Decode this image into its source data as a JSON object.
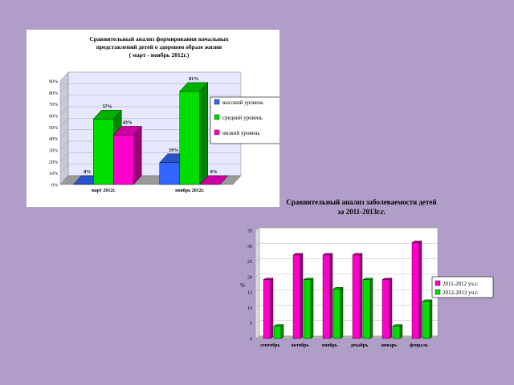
{
  "chart_data": [
    {
      "type": "bar",
      "title": "Сравнительный анализ формирования начальных представлений детей о здоровом образе жизни ( март - ноябрь 2012г.)",
      "title_lines": [
        "Сравнительный анализ формирования начальных",
        "представлений детей о здоровом образе жизни",
        "( март - ноябрь 2012г.)"
      ],
      "categories": [
        "март 2012г.",
        "ноябрь 2012г."
      ],
      "series": [
        {
          "name": "высокий уровень",
          "values": [
            0,
            19
          ],
          "labels": [
            "0%",
            "19%"
          ],
          "color": "#3366ff"
        },
        {
          "name": "средний уровень",
          "values": [
            57,
            81
          ],
          "labels": [
            "57%",
            "81%"
          ],
          "color": "#00dd00"
        },
        {
          "name": "низкий уровень",
          "values": [
            43,
            0
          ],
          "labels": [
            "43%",
            "0%"
          ],
          "color": "#ff00cc"
        }
      ],
      "ylim": [
        0,
        90
      ],
      "yticks": [
        "0%",
        "10%",
        "20%",
        "30%",
        "40%",
        "50%",
        "60%",
        "70%",
        "80%",
        "90%"
      ],
      "grid": true,
      "legend": "right",
      "style": "3d"
    },
    {
      "type": "bar",
      "title": "Сравнительный анализ заболеваемости детей за 2011-2013г.г.",
      "title_lines": [
        "Сравнительный анализ заболеваемости детей",
        "за 2011-2013г.г."
      ],
      "categories": [
        "сентябрь",
        "октябрь",
        "ноябрь",
        "декабрь",
        "январь",
        "февраль"
      ],
      "series": [
        {
          "name": "2011-2012 уч.г.",
          "values": [
            19,
            27,
            27,
            27,
            19,
            31
          ],
          "color": "#ff00cc"
        },
        {
          "name": "2012-2013 уч.г.",
          "values": [
            4,
            19,
            16,
            19,
            4,
            12
          ],
          "color": "#00dd00"
        }
      ],
      "ylabel": "%",
      "ylim": [
        0,
        35
      ],
      "yticks": [
        "0",
        "5",
        "10",
        "15",
        "20",
        "25",
        "30",
        "35"
      ],
      "grid": true,
      "legend": "right",
      "style": "3d"
    }
  ]
}
